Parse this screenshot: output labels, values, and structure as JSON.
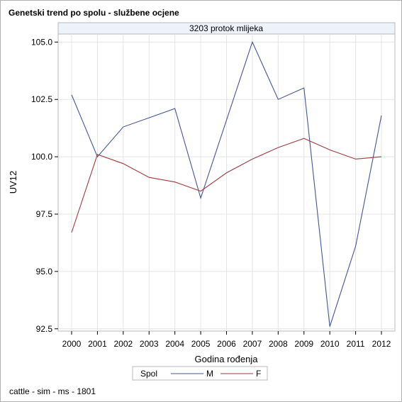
{
  "title": "Genetski trend po spolu - službene ocjene",
  "panel_label": "3203 protok mlijeka",
  "footnote": "cattle - sim - ms - 1801",
  "colors": {
    "M": "#445694",
    "F": "#a23a3a",
    "grid": "#e4e4e4",
    "panel_header": "#eef2fb"
  },
  "chart_data": {
    "type": "line",
    "x": [
      "2000",
      "2001",
      "2002",
      "2003",
      "2004",
      "2005",
      "2006",
      "2007",
      "2008",
      "2009",
      "2010",
      "2011",
      "2012"
    ],
    "xlabel": "Godina rođenja",
    "ylabel": "UV12",
    "ylim": [
      92.4,
      105.35
    ],
    "yticks": [
      92.5,
      95.0,
      97.5,
      100.0,
      102.5,
      105.0
    ],
    "ytick_labels": [
      "92.5",
      "95.0",
      "97.5",
      "100.0",
      "102.5",
      "105.0"
    ],
    "grid": true,
    "legend": {
      "title": "Spol",
      "placement": "bottom"
    },
    "series": [
      {
        "name": "M",
        "color": "#445694",
        "values": [
          102.7,
          100.0,
          101.3,
          101.7,
          102.1,
          98.2,
          101.6,
          105.0,
          102.5,
          103.0,
          92.6,
          96.1,
          101.8
        ]
      },
      {
        "name": "F",
        "color": "#a23a3a",
        "values": [
          96.7,
          100.1,
          99.7,
          99.1,
          98.9,
          98.5,
          99.3,
          99.9,
          100.4,
          100.8,
          100.3,
          99.9,
          100.0
        ]
      }
    ]
  }
}
